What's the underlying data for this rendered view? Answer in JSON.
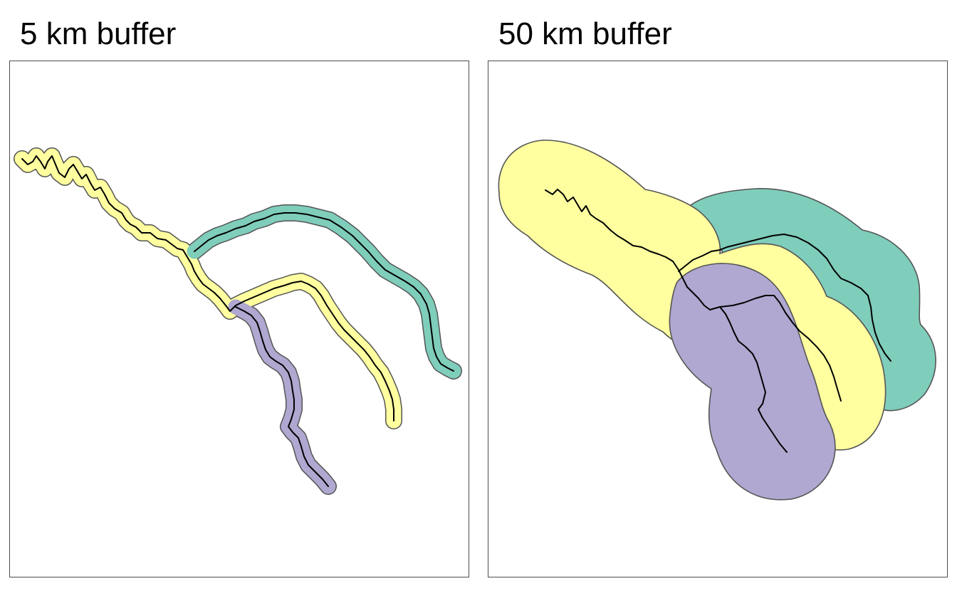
{
  "panels": [
    {
      "title": "5 km buffer"
    },
    {
      "title": "50 km buffer"
    }
  ],
  "colors": {
    "river_a": "#ffffa0",
    "river_b": "#7fcdbb",
    "river_c": "#b0a8d0",
    "outline": "#555555",
    "river_line": "#000000"
  }
}
